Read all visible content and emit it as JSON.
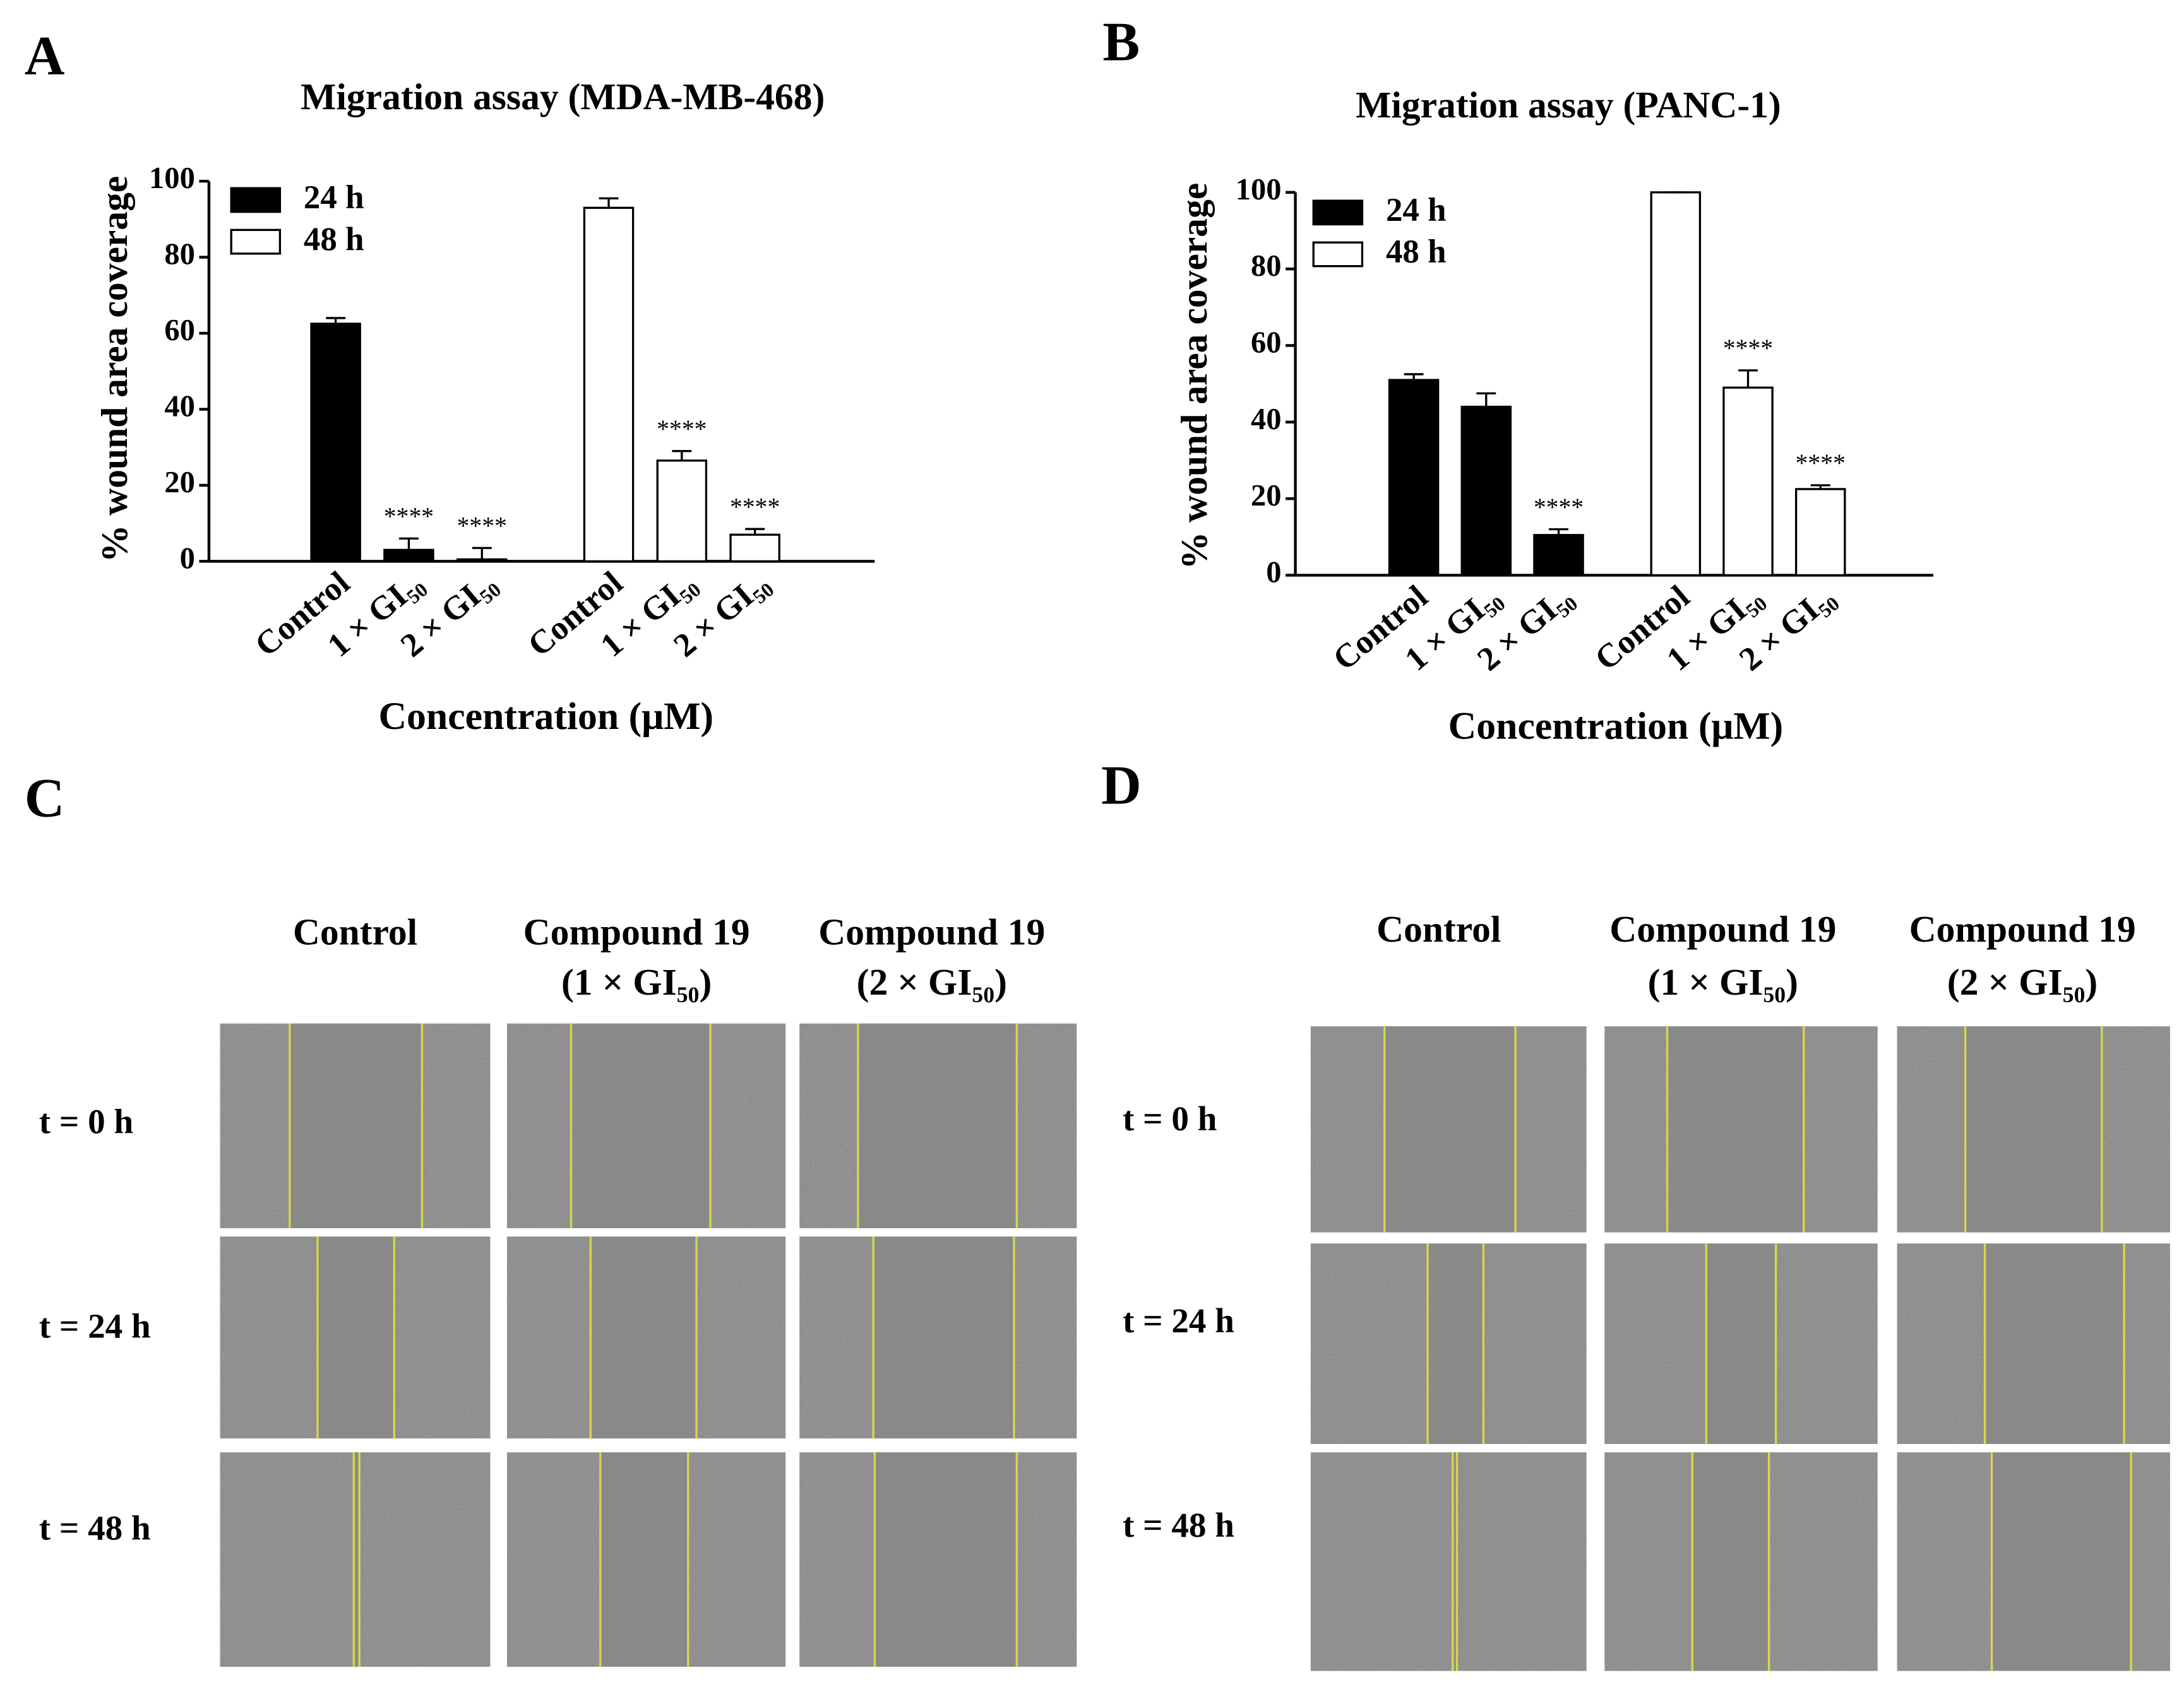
{
  "chart_data": [
    {
      "type": "bar",
      "panel": "A",
      "title": "Migration assay (MDA-MB-468)",
      "ylabel": "% wound area coverage",
      "xlabel": "Concentration (μM)",
      "categories": [
        "Control",
        "1 × GI₅₀",
        "2 × GI₅₀"
      ],
      "series": [
        {
          "name": "24 h",
          "color": "#000000",
          "values": [
            62.5,
            3,
            0.5
          ],
          "errors": [
            1.5,
            3,
            3
          ],
          "annotations": [
            null,
            "****",
            "****"
          ]
        },
        {
          "name": "48 h",
          "color": "#ffffff",
          "values": [
            93,
            26.5,
            7
          ],
          "errors": [
            2.5,
            2.5,
            1.5
          ],
          "annotations": [
            null,
            "****",
            "****"
          ]
        }
      ],
      "ylim": [
        0,
        100
      ],
      "yticks": [
        0,
        20,
        40,
        60,
        80,
        100
      ],
      "legend": "top-left"
    },
    {
      "type": "bar",
      "panel": "B",
      "title": "Migration assay (PANC-1)",
      "ylabel": "% wound area coverage",
      "xlabel": "Concentration (μM)",
      "categories": [
        "Control",
        "1 × GI₅₀",
        "2 × GI₅₀"
      ],
      "series": [
        {
          "name": "24 h",
          "color": "#000000",
          "values": [
            51,
            44,
            10.5
          ],
          "errors": [
            1.5,
            3.5,
            1.5
          ],
          "annotations": [
            null,
            null,
            "****"
          ]
        },
        {
          "name": "48 h",
          "color": "#ffffff",
          "values": [
            100,
            49,
            22.5
          ],
          "errors": [
            0,
            4.5,
            1
          ],
          "annotations": [
            null,
            "****",
            "****"
          ]
        }
      ],
      "ylim": [
        0,
        100
      ],
      "yticks": [
        0,
        20,
        40,
        60,
        80,
        100
      ],
      "legend": "top-left"
    }
  ],
  "panels": [
    {
      "letter": "C",
      "columns": [
        [
          "Control"
        ],
        [
          "Compound 19",
          "(1 × GI₅₀)"
        ],
        [
          "Compound 19",
          "(2 × GI₅₀)"
        ]
      ],
      "rows": [
        "t = 0 h",
        "t = 24 h",
        "t = 48 h"
      ]
    },
    {
      "letter": "D",
      "columns": [
        [
          "Control"
        ],
        [
          "Compound 19",
          "(1 × GI₅₀)"
        ],
        [
          "Compound 19",
          "(2 × GI₅₀)"
        ]
      ],
      "rows": [
        "t = 0 h",
        "t = 24 h",
        "t = 48 h"
      ]
    }
  ]
}
